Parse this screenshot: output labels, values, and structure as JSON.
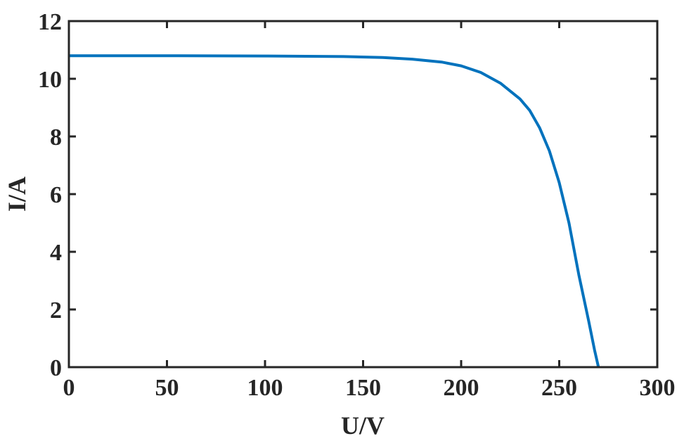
{
  "chart_data": {
    "type": "line",
    "title": "",
    "xlabel": "U/V",
    "ylabel": "I/A",
    "xlim": [
      0,
      300
    ],
    "ylim": [
      0,
      12
    ],
    "xticks": [
      "0",
      "50",
      "100",
      "150",
      "200",
      "250",
      "300"
    ],
    "yticks": [
      "0",
      "2",
      "4",
      "6",
      "8",
      "10",
      "12"
    ],
    "grid": false,
    "legend": "none",
    "series": [
      {
        "color": "#0072BD",
        "x": [
          0,
          50,
          100,
          140,
          160,
          175,
          190,
          200,
          210,
          220,
          230,
          235,
          240,
          245,
          250,
          255,
          260,
          265,
          268,
          270
        ],
        "y": [
          10.8,
          10.8,
          10.79,
          10.77,
          10.74,
          10.68,
          10.58,
          10.45,
          10.22,
          9.85,
          9.3,
          8.9,
          8.3,
          7.5,
          6.4,
          5.0,
          3.2,
          1.6,
          0.6,
          0
        ]
      }
    ]
  }
}
